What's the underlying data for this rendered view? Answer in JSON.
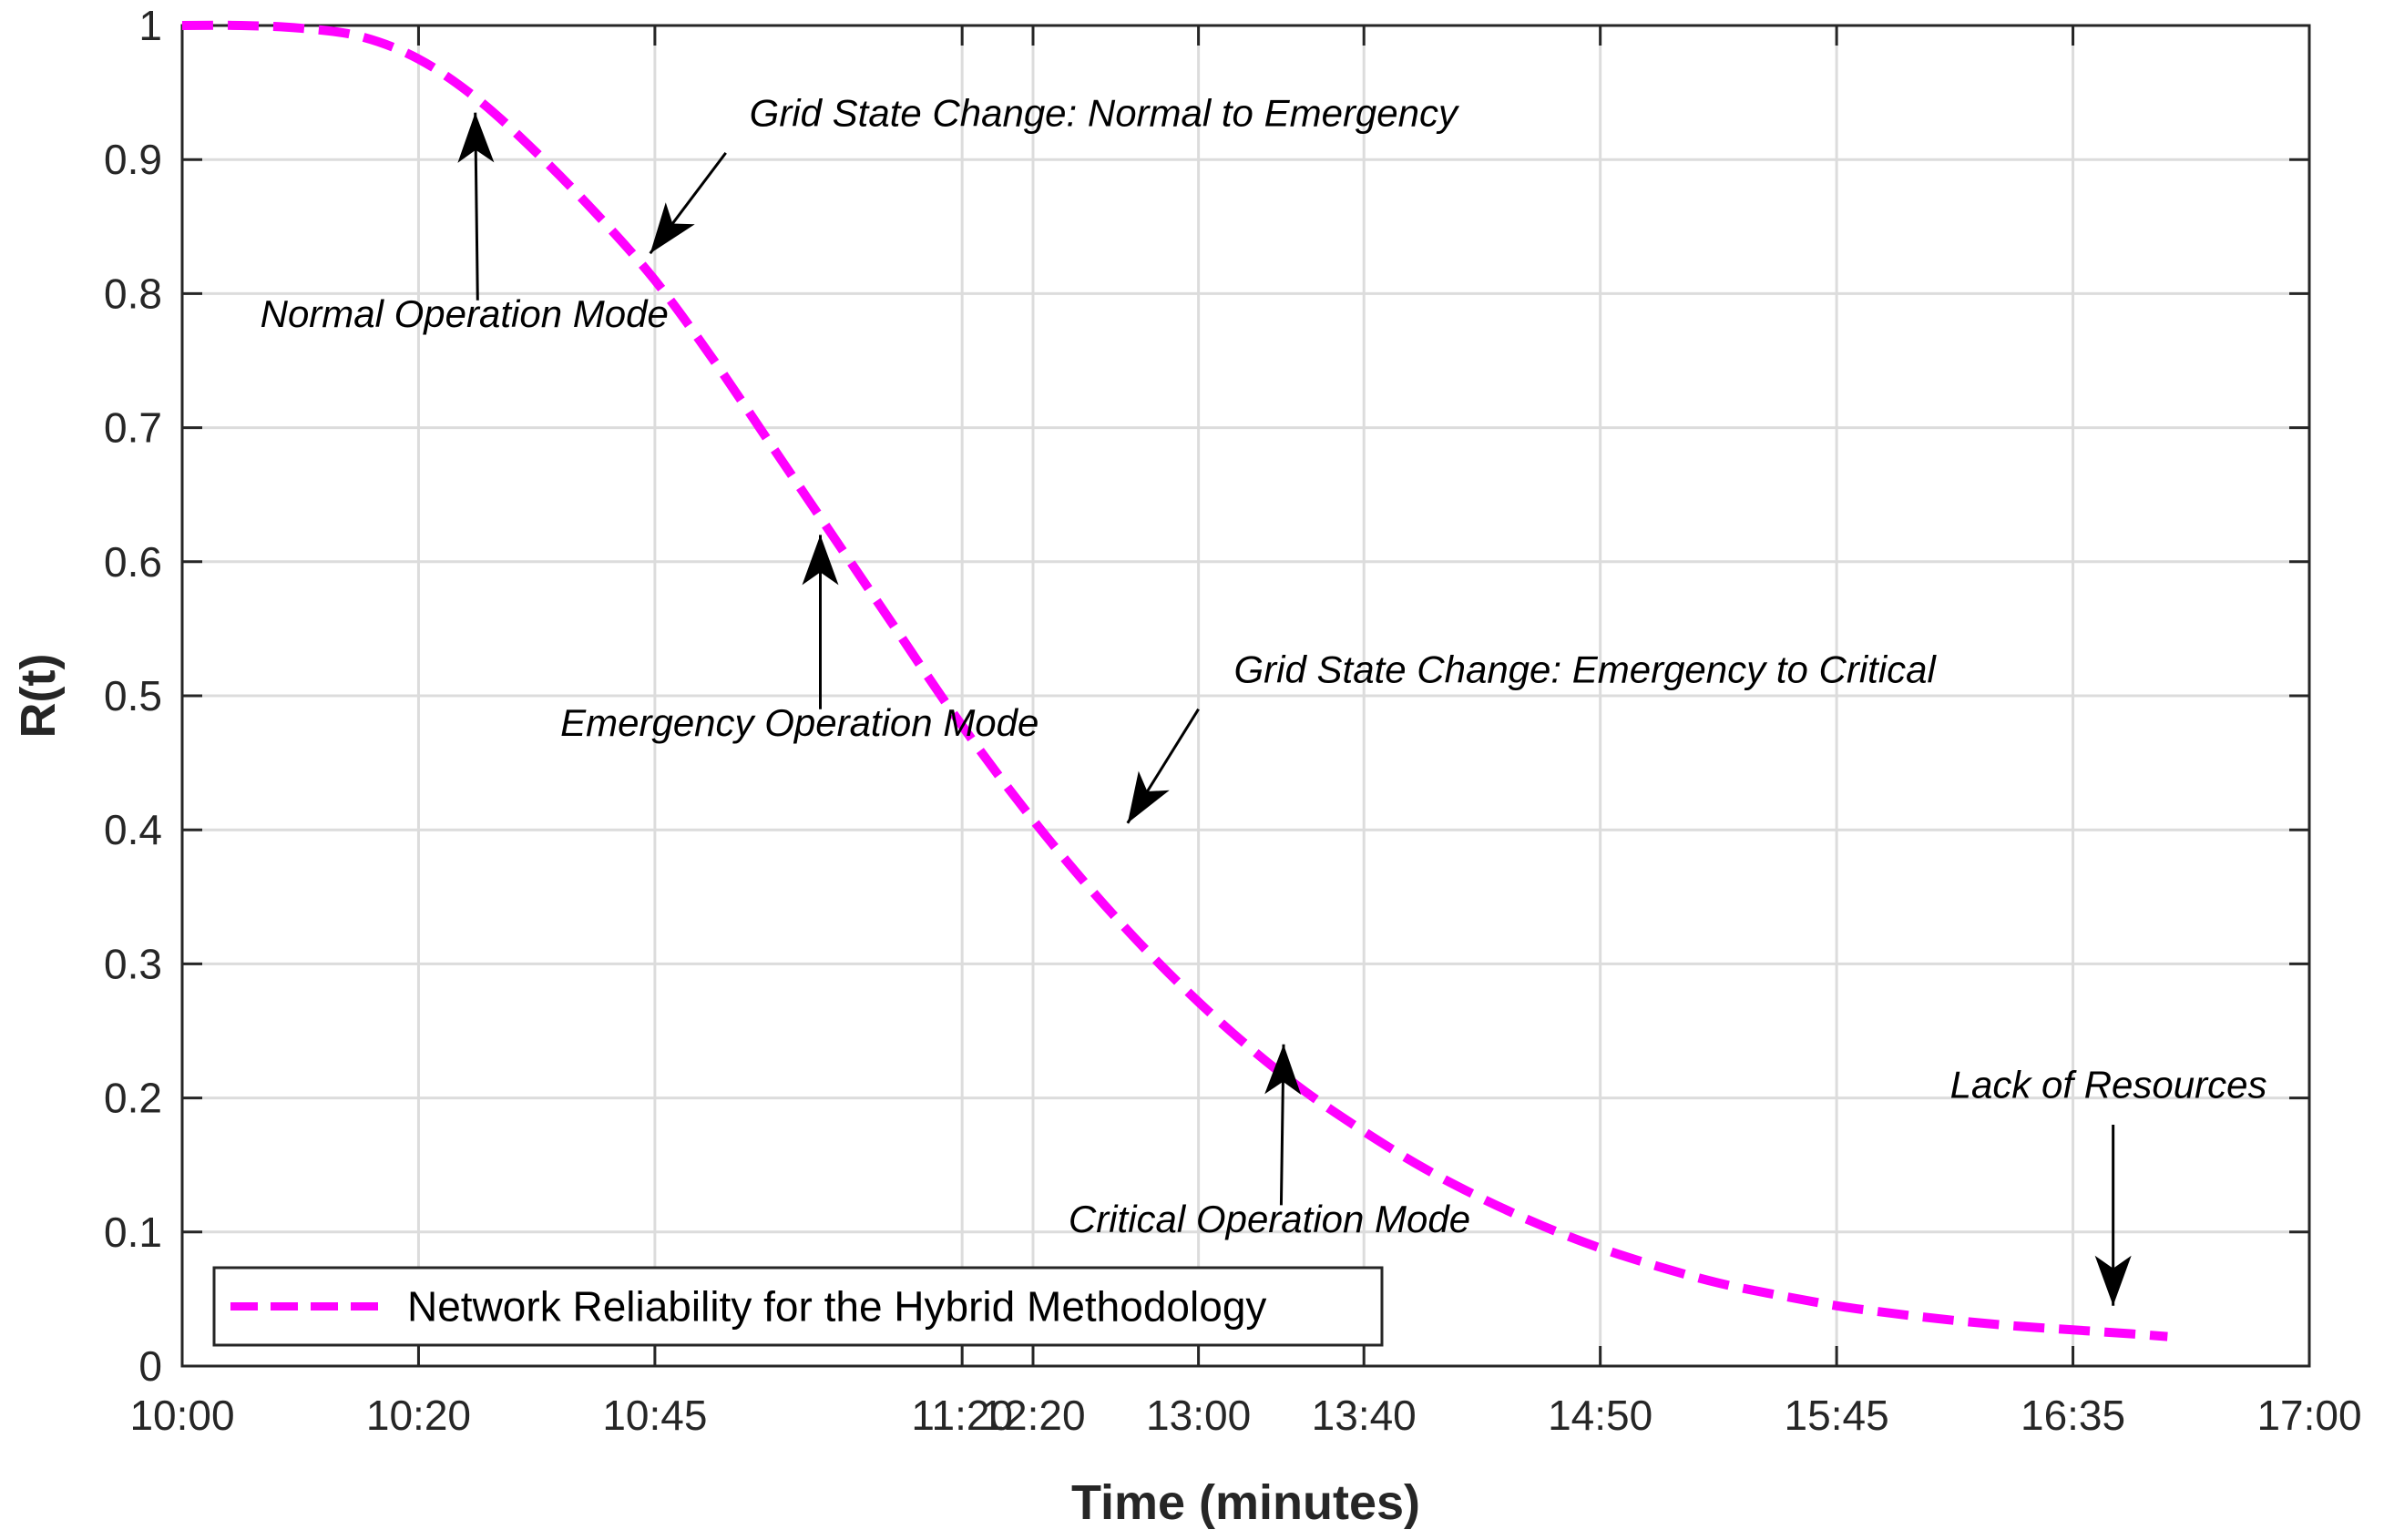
{
  "chart_data": {
    "type": "line",
    "title": "",
    "xlabel": "Time (minutes)",
    "ylabel": "R(t)",
    "x_tick_labels": [
      "10:00",
      "10:20",
      "10:45",
      "11:20",
      "12:20",
      "13:00",
      "13:40",
      "14:50",
      "15:45",
      "16:35",
      "17:00"
    ],
    "x_tick_positions": [
      0,
      1,
      2,
      3.3,
      3.6,
      4.3,
      5,
      6,
      7,
      8,
      9
    ],
    "xlim": [
      0,
      9
    ],
    "y_ticks": [
      0,
      0.1,
      0.2,
      0.3,
      0.4,
      0.5,
      0.6,
      0.7,
      0.8,
      0.9,
      1
    ],
    "y_tick_labels": [
      "0",
      "0.1",
      "0.2",
      "0.3",
      "0.4",
      "0.5",
      "0.6",
      "0.7",
      "0.8",
      "0.9",
      "1"
    ],
    "ylim": [
      0,
      1
    ],
    "grid": true,
    "legend_position": "bottom-left",
    "series": [
      {
        "name": "Network Reliability for the Hybrid Methodology",
        "color": "#ff00ff",
        "style": "dashed",
        "x": [
          0,
          0.25,
          0.5,
          0.75,
          1.0,
          1.25,
          1.5,
          1.75,
          2.0,
          2.25,
          2.5,
          2.75,
          3.0,
          3.25,
          3.5,
          3.75,
          4.0,
          4.25,
          4.5,
          4.75,
          5.0,
          5.25,
          5.5,
          5.75,
          6.0,
          6.25,
          6.5,
          6.75,
          7.0,
          7.25,
          7.5,
          7.75,
          8.0,
          8.25,
          8.4
        ],
        "values": [
          1.0,
          1.0,
          0.998,
          0.992,
          0.975,
          0.945,
          0.905,
          0.86,
          0.81,
          0.75,
          0.685,
          0.62,
          0.555,
          0.49,
          0.43,
          0.375,
          0.325,
          0.28,
          0.24,
          0.205,
          0.175,
          0.148,
          0.125,
          0.105,
          0.088,
          0.074,
          0.062,
          0.053,
          0.045,
          0.039,
          0.034,
          0.03,
          0.027,
          0.024,
          0.022
        ]
      }
    ],
    "annotations": [
      {
        "text": "Grid State Change: Normal to Emergency",
        "x_text": 2.4,
        "y_text": 0.925,
        "arrow_from": [
          2.3,
          0.905
        ],
        "arrow_to": [
          1.98,
          0.83
        ]
      },
      {
        "text": "Normal Operation Mode",
        "x_text": 0.33,
        "y_text": 0.775,
        "arrow_from": [
          1.25,
          0.795
        ],
        "arrow_to": [
          1.24,
          0.935
        ]
      },
      {
        "text": "Emergency Operation Mode",
        "x_text": 1.6,
        "y_text": 0.47,
        "arrow_from": [
          2.7,
          0.49
        ],
        "arrow_to": [
          2.7,
          0.62
        ]
      },
      {
        "text": "Grid State Change: Emergency to Critical",
        "x_text": 4.45,
        "y_text": 0.51,
        "arrow_from": [
          4.3,
          0.49
        ],
        "arrow_to": [
          4.0,
          0.405
        ]
      },
      {
        "text": "Critical Operation Mode",
        "x_text": 3.75,
        "y_text": 0.1,
        "arrow_from": [
          4.65,
          0.12
        ],
        "arrow_to": [
          4.66,
          0.24
        ]
      },
      {
        "text": "Lack of Resources",
        "x_text": 7.48,
        "y_text": 0.2,
        "arrow_from": [
          8.17,
          0.18
        ],
        "arrow_to": [
          8.17,
          0.045
        ]
      }
    ]
  }
}
